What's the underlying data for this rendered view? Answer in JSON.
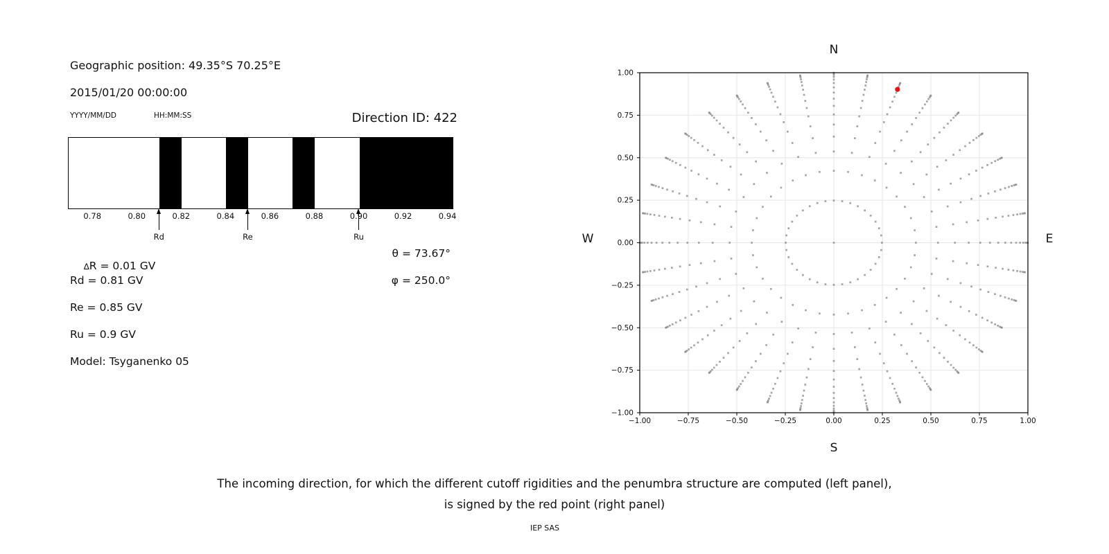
{
  "figure": {
    "left_panel": {
      "geo_position": "Geographic position: 49.35°S 70.25°E",
      "datetime": "2015/01/20 00:00:00",
      "date_format": "YYYY/MM/DD",
      "time_format": "HH:MM:SS",
      "direction_id": "Direction ID: 422",
      "delta_symbol": "∆",
      "delta_r_rest": "R = 0.01 GV",
      "rd": "Rd = 0.81 GV",
      "re": "Re = 0.85 GV",
      "ru": "Ru = 0.9 GV",
      "model": "Model: Tsyganenko 05",
      "theta": "θ = 73.67°",
      "phi": "φ = 250.0°"
    },
    "compass": {
      "n": "N",
      "s": "S",
      "w": "W",
      "e": "E"
    },
    "caption_line1": "The incoming direction, for which the different cutoff rigidities and the penumbra structure are computed (left panel),",
    "caption_line2": "is signed by the red point (right panel)",
    "credit": "IEP SAS"
  },
  "chart_data": [
    {
      "type": "bar",
      "subtype": "penumbra-barcode",
      "xlim": [
        0.769,
        0.942
      ],
      "x_ticks": [
        0.78,
        0.8,
        0.82,
        0.84,
        0.86,
        0.88,
        0.9,
        0.92,
        0.94
      ],
      "forbidden_bands": [
        [
          0.81,
          0.82
        ],
        [
          0.84,
          0.85
        ],
        [
          0.87,
          0.88
        ],
        [
          0.9,
          0.942
        ]
      ],
      "band_color": "#000000",
      "background_color": "#ffffff",
      "markers": [
        {
          "label": "Rd",
          "value": 0.81
        },
        {
          "label": "Re",
          "value": 0.85
        },
        {
          "label": "Ru",
          "value": 0.9
        }
      ],
      "x_unit": "GV"
    },
    {
      "type": "scatter",
      "subtype": "incoming-direction-grid",
      "xlim": [
        -1.0,
        1.0
      ],
      "ylim": [
        -1.0,
        1.0
      ],
      "x_ticks": [
        -1.0,
        -0.75,
        -0.5,
        -0.25,
        0.0,
        0.25,
        0.5,
        0.75,
        1.0
      ],
      "y_ticks": [
        -1.0,
        -0.75,
        -0.5,
        -0.25,
        0.0,
        0.25,
        0.5,
        0.75,
        1.0
      ],
      "grid": true,
      "grid_color": "#e6e6e6",
      "dot_color": "#808080",
      "dot_opacity": 0.7,
      "ring_radii": [
        0.9995,
        0.9956,
        0.9877,
        0.9758,
        0.9596,
        0.9391,
        0.9138,
        0.8833,
        0.8472,
        0.8047,
        0.7545,
        0.6953,
        0.6242,
        0.5367,
        0.4228,
        0.248
      ],
      "azimuth_step_deg": 10,
      "center_point": {
        "x": 0.0,
        "y": 0.0
      },
      "red_point": {
        "x": 0.328,
        "y": 0.902,
        "ring_radius": 0.9596,
        "screen_azimuth_deg": 20
      },
      "red_color": "#e81111"
    }
  ]
}
